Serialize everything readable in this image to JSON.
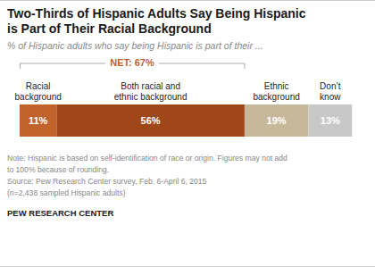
{
  "chart_data": {
    "type": "bar",
    "orientation": "horizontal",
    "stacked": true,
    "title": "Two-Thirds of Hispanic Adults Say Being Hispanic\nis Part of Their Racial Background",
    "subtitle": "% of Hispanic adults who say being Hispanic is part of their ...",
    "categories": [
      "Racial\nbackground",
      "Both racial and\nethnic background",
      "Ethnic\nbackground",
      "Don’t\nknow"
    ],
    "values": [
      11,
      56,
      19,
      13
    ],
    "value_labels": [
      "11%",
      "56%",
      "19%",
      "13%"
    ],
    "data_labels": true,
    "colors": [
      "#c0622a",
      "#a0471a",
      "#c8b89a",
      "#c8c8c8"
    ],
    "xlim": [
      0,
      100
    ],
    "tick_labels": false,
    "grid": false,
    "annotations": [
      {
        "text": "NET: 67%",
        "x": [
          0,
          67
        ],
        "color": "#c0622a"
      }
    ],
    "notes": [
      "Note: Hispanic is based on self-identification of race or origin. Figures may not add",
      "to 100% because of rounding.",
      "Source: Pew Research Center survey, Feb. 6-April 6, 2015",
      "(n=2,438 sampled Hispanic adults)"
    ],
    "footer": "PEW RESEARCH CENTER"
  }
}
